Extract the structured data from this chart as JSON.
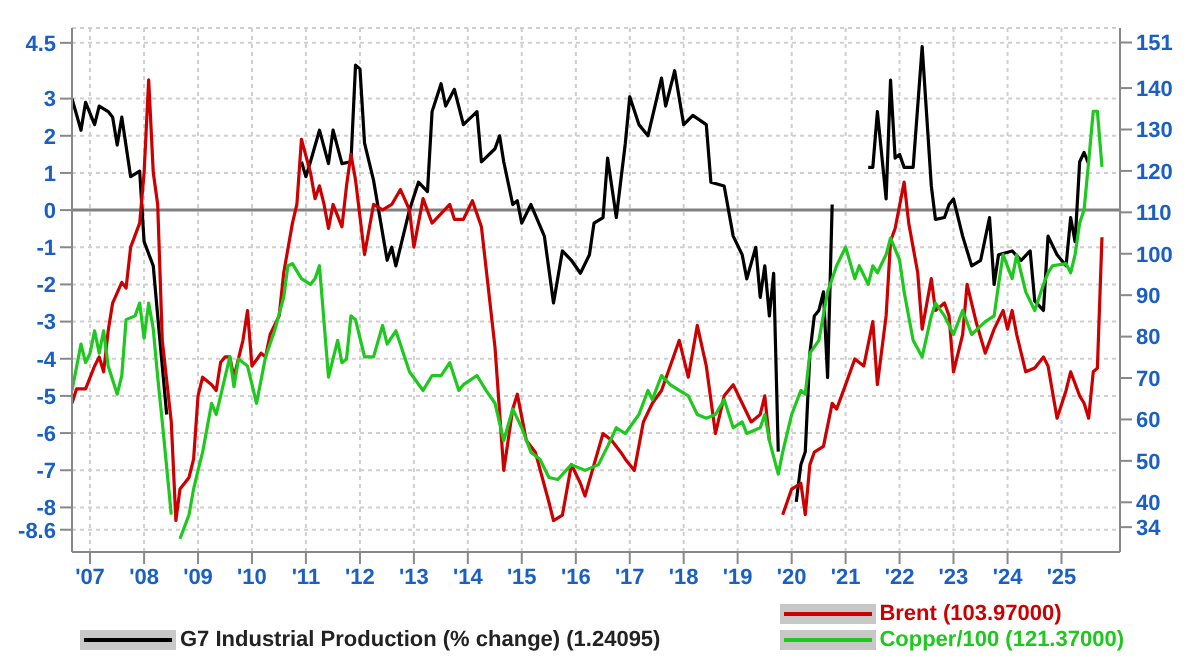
{
  "chart_data": {
    "type": "line",
    "xlim": [
      "2007-03",
      "2026-08"
    ],
    "xticks": [
      {
        "value": "2007-07",
        "label": "'07"
      },
      {
        "value": "2008-07",
        "label": "'08"
      },
      {
        "value": "2009-07",
        "label": "'09"
      },
      {
        "value": "2010-07",
        "label": "'10"
      },
      {
        "value": "2011-07",
        "label": "'11"
      },
      {
        "value": "2012-07",
        "label": "'12"
      },
      {
        "value": "2013-07",
        "label": "'13"
      },
      {
        "value": "2014-07",
        "label": "'14"
      },
      {
        "value": "2015-07",
        "label": "'15"
      },
      {
        "value": "2016-07",
        "label": "'16"
      },
      {
        "value": "2017-07",
        "label": "'17"
      },
      {
        "value": "2018-07",
        "label": "'18"
      },
      {
        "value": "2019-07",
        "label": "'19"
      },
      {
        "value": "2020-07",
        "label": "'20"
      },
      {
        "value": "2021-07",
        "label": "'21"
      },
      {
        "value": "2022-07",
        "label": "'22"
      },
      {
        "value": "2023-07",
        "label": "'23"
      },
      {
        "value": "2024-07",
        "label": "'24"
      },
      {
        "value": "2025-07",
        "label": "'25"
      }
    ],
    "ylim": [
      -9.2,
      4.9
    ],
    "yticks": [
      4.5,
      3,
      2,
      1,
      0,
      -1,
      -2,
      -3,
      -4,
      -5,
      -6,
      -7,
      -8,
      -8.6
    ],
    "y2lim": [
      28,
      154.5
    ],
    "y2ticks": [
      151,
      140,
      130,
      120,
      110,
      100,
      90,
      80,
      70,
      60,
      50,
      40,
      34
    ],
    "grid": true,
    "legend": "bottom",
    "ref_lines": [
      {
        "axis": "y",
        "value": 0,
        "color": "#808080"
      }
    ],
    "series": [
      {
        "name": "G7 Industrial Production (% change) (1.24095)",
        "color": "#000000",
        "axis": "y",
        "x": [
          "2007-03",
          "2007-05",
          "2007-06",
          "2007-08",
          "2007-09",
          "2007-11",
          "2007-12",
          "2008-01",
          "2008-02",
          "2008-04",
          "2008-06",
          "2008-07",
          "2008-09",
          "2008-10",
          "2008-12",
          "2009-01",
          "2010-01",
          "2010-04",
          "2011-04",
          "2011-06",
          "2011-07",
          "2011-08",
          "2011-10",
          "2011-12",
          "2012-01",
          "2012-03",
          "2012-05",
          "2012-06",
          "2012-07",
          "2012-08",
          "2012-10",
          "2013-01",
          "2013-02",
          "2013-03",
          "2013-06",
          "2013-08",
          "2013-10",
          "2013-11",
          "2014-01",
          "2014-02",
          "2014-04",
          "2014-06",
          "2014-09",
          "2014-10",
          "2015-01",
          "2015-02",
          "2015-03",
          "2015-05",
          "2015-06",
          "2015-07",
          "2015-09",
          "2015-12",
          "2016-02",
          "2016-04",
          "2016-06",
          "2016-08",
          "2016-10",
          "2016-11",
          "2017-01",
          "2017-02",
          "2017-04",
          "2017-06",
          "2017-07",
          "2017-09",
          "2017-11",
          "2018-02",
          "2018-03",
          "2018-05",
          "2018-07",
          "2018-09",
          "2018-12",
          "2019-01",
          "2019-04",
          "2019-06",
          "2019-08",
          "2019-09",
          "2019-11",
          "2019-12",
          "2020-01",
          "2020-02",
          "2020-03",
          "2020-04",
          "2020-05",
          "2020-07",
          "2020-08",
          "2020-09",
          "2020-10",
          "2020-11",
          "2020-12",
          "2021-01",
          "2021-02",
          "2021-03",
          "2021-04",
          "2021-05",
          "2021-11",
          "2021-12",
          "2022-01",
          "2022-02",
          "2022-04",
          "2022-05",
          "2022-06",
          "2022-07",
          "2022-08",
          "2022-10",
          "2022-12",
          "2023-02",
          "2023-03",
          "2023-05",
          "2023-06",
          "2023-07",
          "2023-09",
          "2023-11",
          "2024-01",
          "2024-03",
          "2024-04",
          "2024-05",
          "2024-08",
          "2024-10",
          "2024-12",
          "2025-01",
          "2025-03",
          "2025-04",
          "2025-06",
          "2025-08",
          "2025-09",
          "2025-10",
          "2025-11",
          "2025-12",
          "2026-01"
        ],
        "values": [
          3.0,
          2.15,
          2.9,
          2.3,
          2.8,
          2.65,
          2.5,
          1.75,
          2.5,
          0.9,
          1.05,
          -0.85,
          -1.5,
          -2.85,
          -5.5,
          null,
          null,
          null,
          null,
          1.3,
          0.9,
          1.3,
          2.15,
          1.25,
          2.15,
          1.25,
          1.3,
          3.9,
          3.8,
          1.8,
          0.8,
          -1.35,
          -1.0,
          -1.5,
          0,
          0.75,
          0.5,
          2.65,
          3.4,
          2.8,
          3.25,
          2.3,
          2.65,
          1.3,
          1.65,
          2.0,
          1.3,
          0.15,
          0.25,
          -0.35,
          0.15,
          -0.7,
          -2.5,
          -1.1,
          -1.35,
          -1.7,
          -1.2,
          -0.35,
          -0.2,
          1.4,
          -0.2,
          1.8,
          3.05,
          2.3,
          2.0,
          3.55,
          2.8,
          3.75,
          2.3,
          2.55,
          2.3,
          0.75,
          0.65,
          -0.7,
          -1.2,
          -1.85,
          -1.0,
          -2.35,
          -1.5,
          -2.85,
          -1.7,
          -6.5,
          null,
          null,
          -7.85,
          -6.85,
          -6.5,
          -3.85,
          -2.85,
          -2.7,
          -2.2,
          -4.5,
          0.15,
          null,
          null,
          1.15,
          1.15,
          2.65,
          0.3,
          3.5,
          1.4,
          1.5,
          1.15,
          1.15,
          4.4,
          0.65,
          -0.25,
          -0.2,
          0.15,
          0.3,
          -0.7,
          -1.5,
          -1.35,
          -0.2,
          -2.0,
          -1.2,
          -1.1,
          -1.35,
          -1.1,
          -2.45,
          -2.7,
          -0.7,
          -1.2,
          -1.5,
          -0.2,
          -0.85,
          1.3,
          1.55,
          1.24
        ]
      },
      {
        "name": "Brent (103.97000)",
        "color": "#cc0000",
        "axis": "y2",
        "x": [
          "2007-03",
          "2007-04",
          "2007-06",
          "2007-08",
          "2007-09",
          "2007-10",
          "2007-11",
          "2007-12",
          "2008-02",
          "2008-03",
          "2008-04",
          "2008-06",
          "2008-07",
          "2008-08",
          "2008-09",
          "2008-10",
          "2008-11",
          "2009-01",
          "2009-02",
          "2009-03",
          "2009-05",
          "2009-06",
          "2009-07",
          "2009-08",
          "2009-10",
          "2009-11",
          "2009-12",
          "2010-01",
          "2010-02",
          "2010-03",
          "2010-05",
          "2010-06",
          "2010-07",
          "2010-09",
          "2010-10",
          "2010-11",
          "2011-01",
          "2011-02",
          "2011-04",
          "2011-05",
          "2011-06",
          "2011-08",
          "2011-09",
          "2011-10",
          "2011-11",
          "2011-12",
          "2012-01",
          "2012-03",
          "2012-04",
          "2012-05",
          "2012-06",
          "2012-08",
          "2012-10",
          "2012-12",
          "2013-02",
          "2013-04",
          "2013-06",
          "2013-07",
          "2013-09",
          "2013-11",
          "2014-01",
          "2014-03",
          "2014-04",
          "2014-06",
          "2014-08",
          "2014-10",
          "2015-01",
          "2015-03",
          "2015-05",
          "2015-06",
          "2015-08",
          "2015-10",
          "2016-01",
          "2016-02",
          "2016-04",
          "2016-06",
          "2016-08",
          "2016-09",
          "2016-11",
          "2017-01",
          "2017-03",
          "2017-05",
          "2017-06",
          "2017-08",
          "2017-10",
          "2017-12",
          "2018-02",
          "2018-04",
          "2018-06",
          "2018-08",
          "2018-10",
          "2018-12",
          "2019-02",
          "2019-04",
          "2019-06",
          "2019-08",
          "2019-10",
          "2019-12",
          "2020-01",
          "2020-02",
          "2020-04",
          "2020-05",
          "2020-07",
          "2020-09",
          "2020-10",
          "2020-11",
          "2020-12",
          "2021-02",
          "2021-04",
          "2021-05",
          "2021-07",
          "2021-09",
          "2021-11",
          "2022-01",
          "2022-02",
          "2022-04",
          "2022-05",
          "2022-06",
          "2022-08",
          "2022-09",
          "2022-11",
          "2022-12",
          "2023-02",
          "2023-03",
          "2023-05",
          "2023-06",
          "2023-07",
          "2023-09",
          "2023-10",
          "2023-12",
          "2024-02",
          "2024-04",
          "2024-06",
          "2024-07",
          "2024-08",
          "2024-09",
          "2024-11",
          "2025-01",
          "2025-03",
          "2025-04",
          "2025-06",
          "2025-08",
          "2025-09",
          "2025-11",
          "2025-12",
          "2026-01",
          "2026-02",
          "2026-03",
          "2026-04"
        ],
        "values": [
          63.9,
          67.4,
          67.4,
          72.9,
          75.1,
          71.5,
          81.4,
          88.1,
          93.1,
          91.7,
          101.6,
          107.4,
          119.6,
          142,
          119.6,
          111.9,
          79.1,
          59.4,
          35.6,
          43.2,
          46,
          50.4,
          65.7,
          70.2,
          68.4,
          67,
          73.8,
          75.1,
          75.1,
          70.2,
          79.1,
          86.3,
          72.9,
          76,
          75.1,
          80.5,
          85,
          95.4,
          107.4,
          111.9,
          127.6,
          119.6,
          113.3,
          116.4,
          111.9,
          106.1,
          111.9,
          106.5,
          116.4,
          124,
          117.8,
          99.8,
          111.9,
          110.6,
          111.9,
          115.5,
          110.6,
          101.6,
          113.3,
          107.4,
          109.7,
          111.9,
          108.3,
          108.3,
          112.8,
          106.5,
          77.4,
          47.7,
          62.5,
          66.1,
          54.9,
          52.1,
          40,
          35.6,
          36.9,
          49.1,
          44.6,
          41.5,
          49.1,
          56.6,
          54.9,
          52.1,
          50.4,
          47.7,
          59.4,
          63.9,
          67,
          72.9,
          79.1,
          70.2,
          82.7,
          72.9,
          56.6,
          65.7,
          68.4,
          63.9,
          59.4,
          61.2,
          65.7,
          54.9,
          null,
          37,
          43.2,
          44.6,
          37,
          49.1,
          52.1,
          53.5,
          63.9,
          62.5,
          68.4,
          74.6,
          72.9,
          83.6,
          68.4,
          85,
          103,
          106.1,
          117.3,
          107.4,
          95.4,
          81.8,
          94,
          86.3,
          88.1,
          85,
          71.5,
          80.5,
          92.6,
          83.6,
          76,
          81.8,
          86.3,
          81.8,
          86.3,
          80.5,
          71.5,
          72.4,
          75.1,
          72.9,
          60.3,
          67,
          71.5,
          65.7,
          63.9,
          60.3,
          71.5,
          72.4,
          104
        ]
      },
      {
        "name": "Copper/100 (121.37000)",
        "color": "#1ec81e",
        "axis": "y2",
        "x": [
          "2007-03",
          "2007-05",
          "2007-06",
          "2007-07",
          "2007-08",
          "2007-09",
          "2007-10",
          "2007-11",
          "2008-01",
          "2008-02",
          "2008-03",
          "2008-05",
          "2008-06",
          "2008-07",
          "2008-08",
          "2008-09",
          "2008-10",
          "2008-11",
          "2009-01",
          "2009-02",
          "2009-03",
          "2009-05",
          "2009-06",
          "2009-07",
          "2009-08",
          "2009-10",
          "2009-11",
          "2009-12",
          "2010-02",
          "2010-03",
          "2010-04",
          "2010-06",
          "2010-08",
          "2010-10",
          "2010-12",
          "2011-02",
          "2011-03",
          "2011-04",
          "2011-06",
          "2011-08",
          "2011-09",
          "2011-10",
          "2011-12",
          "2012-02",
          "2012-03",
          "2012-04",
          "2012-05",
          "2012-06",
          "2012-08",
          "2012-09",
          "2012-10",
          "2012-12",
          "2013-01",
          "2013-03",
          "2013-06",
          "2013-09",
          "2013-11",
          "2014-01",
          "2014-03",
          "2014-05",
          "2014-06",
          "2014-09",
          "2014-11",
          "2015-01",
          "2015-03",
          "2015-05",
          "2015-07",
          "2015-09",
          "2015-11",
          "2016-01",
          "2016-03",
          "2016-06",
          "2016-09",
          "2016-12",
          "2017-02",
          "2017-04",
          "2017-06",
          "2017-09",
          "2017-11",
          "2017-12",
          "2018-02",
          "2018-04",
          "2018-06",
          "2018-08",
          "2018-10",
          "2018-12",
          "2019-02",
          "2019-04",
          "2019-06",
          "2019-08",
          "2019-09",
          "2019-12",
          "2020-01",
          "2020-02",
          "2020-04",
          "2020-05",
          "2020-07",
          "2020-09",
          "2020-10",
          "2020-11",
          "2021-01",
          "2021-03",
          "2021-05",
          "2021-07",
          "2021-09",
          "2021-10",
          "2021-12",
          "2022-01",
          "2022-02",
          "2022-04",
          "2022-05",
          "2022-07",
          "2022-08",
          "2022-10",
          "2022-12",
          "2023-02",
          "2023-03",
          "2023-05",
          "2023-07",
          "2023-09",
          "2023-11",
          "2024-02",
          "2024-04",
          "2024-05",
          "2024-06",
          "2024-08",
          "2024-09",
          "2024-11",
          "2025-01",
          "2025-03",
          "2025-04",
          "2025-05",
          "2025-08",
          "2025-09",
          "2025-10",
          "2025-11",
          "2025-12",
          "2026-01",
          "2026-02",
          "2026-03",
          "2026-04"
        ],
        "values": [
          67,
          78.2,
          73.7,
          76,
          81.4,
          76,
          81.4,
          72.9,
          66.1,
          70.6,
          84.1,
          85,
          88.1,
          79.6,
          88.1,
          81.8,
          70.2,
          59.4,
          37,
          null,
          31.2,
          37,
          43.2,
          47.7,
          52.1,
          63.9,
          61.2,
          65.7,
          75.1,
          67.9,
          74.6,
          72.9,
          63.9,
          75.1,
          81.4,
          89.5,
          97.1,
          97.6,
          94,
          92.6,
          94,
          97.1,
          70.2,
          79.1,
          73.7,
          74.6,
          85,
          84.1,
          75.1,
          75.1,
          75.1,
          82.7,
          78.2,
          81.4,
          71.5,
          67,
          70.6,
          70.6,
          73.7,
          67,
          68.4,
          70.6,
          67,
          63.9,
          54.9,
          62.5,
          58,
          52.1,
          50.4,
          46,
          45.5,
          49.1,
          47.7,
          49.1,
          53.5,
          58,
          56.6,
          61.2,
          67,
          64.8,
          70.6,
          68.4,
          67,
          65.7,
          61.2,
          60.3,
          61.2,
          64.8,
          58,
          59.4,
          56.6,
          58,
          61.2,
          54.9,
          46.8,
          52.1,
          61.2,
          67,
          66.1,
          76,
          79.1,
          90.8,
          97.1,
          101.6,
          94,
          97.1,
          92.6,
          97.1,
          95.4,
          99.8,
          103.8,
          98.5,
          90.8,
          79.1,
          75.1,
          85,
          88.1,
          85,
          80.5,
          86.3,
          80.5,
          83.6,
          85,
          92.6,
          99.8,
          94,
          99.8,
          90.8,
          86.3,
          92.6,
          95.4,
          97.1,
          97.6,
          95.4,
          99.8,
          107.4,
          110.6,
          122.3,
          134.4,
          134.4,
          121
        ]
      }
    ]
  }
}
